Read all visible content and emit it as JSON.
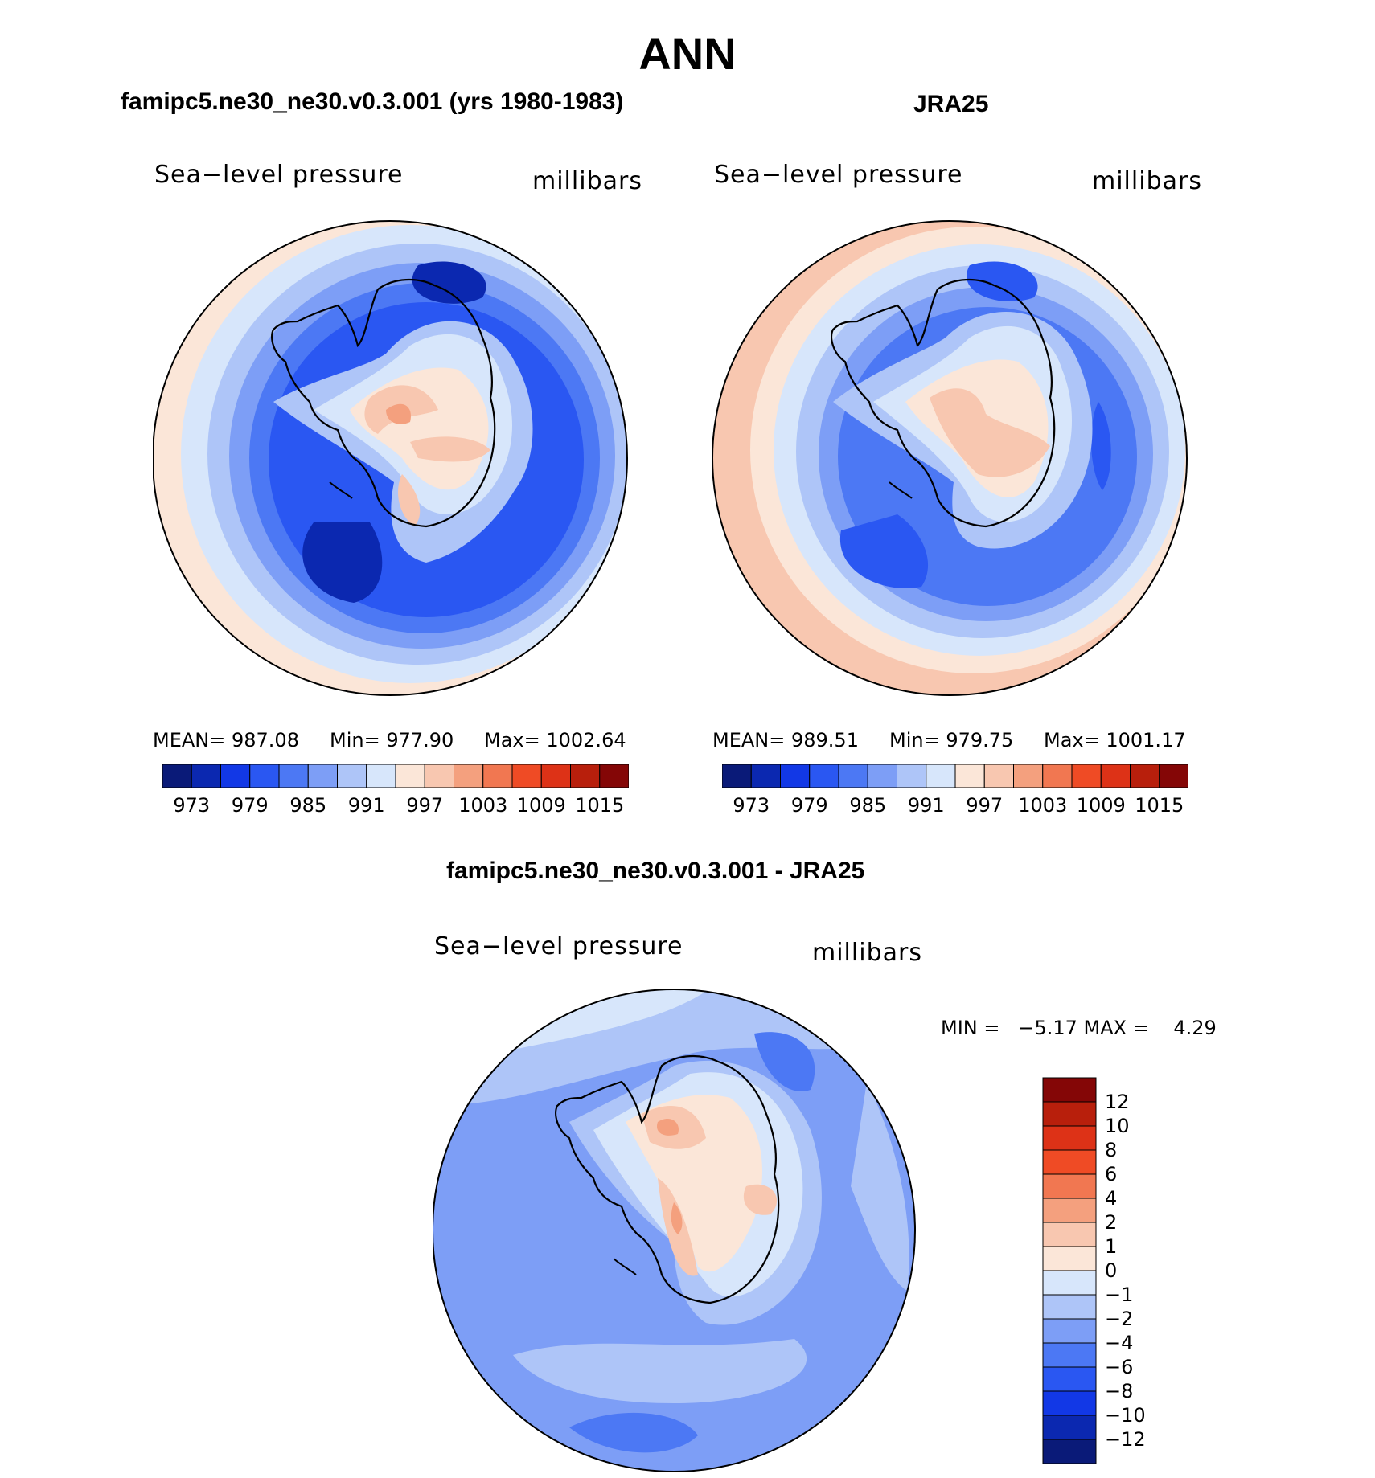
{
  "figure": {
    "main_title": "ANN"
  },
  "panels": {
    "model": {
      "title": "famipc5.ne30_ne30.v0.3.001 (yrs 1980-1983)",
      "variable": "Sea−level pressure",
      "units": "millibars",
      "stats": {
        "mean": "MEAN= 987.08",
        "min": "Min= 977.90",
        "max": "Max= 1002.64"
      }
    },
    "obs": {
      "title": "JRA25",
      "variable": "Sea−level pressure",
      "units": "millibars",
      "stats": {
        "mean": "MEAN= 989.51",
        "min": "Min= 979.75",
        "max": "Max= 1001.17"
      }
    },
    "diff": {
      "title": "famipc5.ne30_ne30.v0.3.001 - JRA25",
      "variable": "Sea−level pressure",
      "units": "millibars",
      "stats": {
        "minmax": "MIN =   −5.17 MAX =    4.29"
      }
    }
  },
  "colorbars": {
    "abs": {
      "colors": [
        "#0a1a78",
        "#0b28b0",
        "#1238e6",
        "#2a57f2",
        "#4c78f4",
        "#7d9ef6",
        "#aec5f8",
        "#d7e6fb",
        "#fbe6d8",
        "#f8c7b0",
        "#f4a07e",
        "#f17751",
        "#ef4b25",
        "#dd3217",
        "#b81f0c",
        "#840606"
      ],
      "labels": [
        "973",
        "979",
        "985",
        "991",
        "997",
        "1003",
        "1009",
        "1015"
      ]
    },
    "diff": {
      "colors": [
        "#0a1a78",
        "#0b28b0",
        "#1238e6",
        "#2a57f2",
        "#4c78f4",
        "#7d9ef6",
        "#aec5f8",
        "#d7e6fb",
        "#fbe6d8",
        "#f8c7b0",
        "#f4a07e",
        "#f17751",
        "#ef4b25",
        "#dd3217",
        "#b81f0c",
        "#840606"
      ],
      "labels": [
        "−12",
        "−10",
        "−8",
        "−6",
        "−4",
        "−2",
        "−1",
        "0",
        "1",
        "2",
        "4",
        "6",
        "8",
        "10",
        "12"
      ]
    }
  },
  "map_fields": {
    "model_colors": {
      "outer": "#fbe6d8",
      "ring1": "#d7e6fb",
      "ring2": "#aec5f8",
      "ring3": "#7d9ef6",
      "ring4": "#4c78f4",
      "ring5": "#2a57f2",
      "low": "#0b28b0",
      "coast1": "#aec5f8",
      "coast2": "#d7e6fb",
      "dome1": "#fbe6d8",
      "dome2": "#f8c7b0",
      "dome3": "#f4a07e"
    },
    "obs_colors": {
      "outer": "#f8c7b0",
      "ring1": "#fbe6d8",
      "ring2": "#d7e6fb",
      "ring3": "#aec5f8",
      "ring4": "#7d9ef6",
      "ring5": "#4c78f4",
      "low": "#2a57f2",
      "coast1": "#aec5f8",
      "coast2": "#d7e6fb",
      "dome1": "#fbe6d8",
      "dome2": "#f8c7b0",
      "dome3": "#f4a07e"
    },
    "diff_colors": {
      "base": "#7d9ef6",
      "light": "#aec5f8",
      "lighter": "#d7e6fb",
      "dark": "#4c78f4",
      "warm1": "#fbe6d8",
      "warm2": "#f8c7b0",
      "warm3": "#f4a07e"
    }
  }
}
